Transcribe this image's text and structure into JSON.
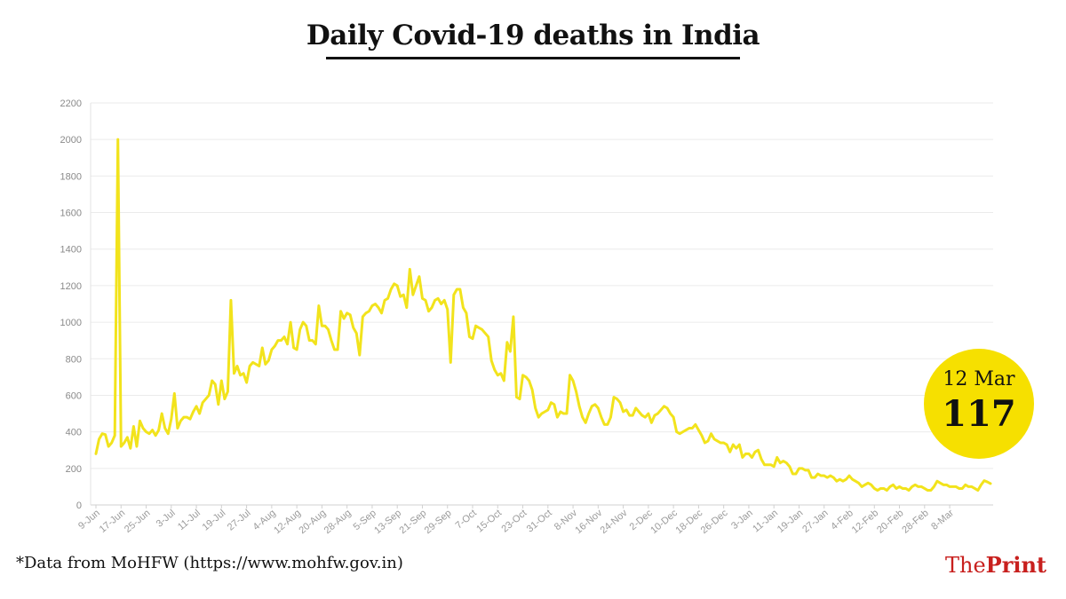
{
  "title": "Daily Covid-19 deaths in India",
  "source_note": "*Data from MoHFW (https://www.mohfw.gov.in)",
  "brand": {
    "the": "The",
    "print": "Print"
  },
  "badge": {
    "date": "12 Mar",
    "value": "117"
  },
  "colors": {
    "line": "#f2e31c",
    "badge": "#f6e000",
    "grid": "#e6e6e6",
    "axis_text": "#9a9a9a",
    "brand": "#c8201e"
  },
  "chart_data": {
    "type": "line",
    "title": "Daily Covid-19 deaths in India",
    "xlabel": "",
    "ylabel": "",
    "ylim": [
      0,
      2200
    ],
    "yticks": [
      0,
      200,
      400,
      600,
      800,
      1000,
      1200,
      1400,
      1600,
      1800,
      2000,
      2200
    ],
    "xtick_labels": [
      "9-Jun",
      "17-Jun",
      "25-Jun",
      "3-Jul",
      "11-Jul",
      "19-Jul",
      "27-Jul",
      "4-Aug",
      "12-Aug",
      "20-Aug",
      "28-Aug",
      "5-Sep",
      "13-Sep",
      "21-Sep",
      "29-Sep",
      "7-Oct",
      "15-Oct",
      "23-Oct",
      "31-Oct",
      "8-Nov",
      "16-Nov",
      "24-Nov",
      "2-Dec",
      "10-Dec",
      "18-Dec",
      "26-Dec",
      "3-Jan",
      "11-Jan",
      "19-Jan",
      "27-Jan",
      "4-Feb",
      "12-Feb",
      "20-Feb",
      "28-Feb",
      "8-Mar"
    ],
    "x_start": "9-Jun",
    "x_end": "12-Mar",
    "grid": true,
    "series": [
      {
        "values": [
          280,
          360,
          390,
          385,
          320,
          340,
          380,
          2000,
          320,
          340,
          370,
          310,
          430,
          320,
          460,
          420,
          400,
          390,
          410,
          380,
          410,
          500,
          420,
          390,
          470,
          610,
          420,
          460,
          480,
          480,
          470,
          510,
          540,
          500,
          560,
          580,
          600,
          680,
          660,
          550,
          680,
          580,
          620,
          1120,
          720,
          760,
          710,
          720,
          670,
          760,
          780,
          770,
          760,
          860,
          770,
          790,
          850,
          870,
          900,
          900,
          920,
          880,
          1000,
          860,
          850,
          960,
          1000,
          980,
          900,
          900,
          880,
          1090,
          980,
          980,
          960,
          900,
          850,
          850,
          1060,
          1020,
          1050,
          1040,
          970,
          940,
          820,
          1030,
          1050,
          1060,
          1090,
          1100,
          1080,
          1050,
          1120,
          1130,
          1180,
          1210,
          1200,
          1140,
          1150,
          1080,
          1290,
          1150,
          1200,
          1250,
          1130,
          1120,
          1060,
          1080,
          1120,
          1130,
          1100,
          1120,
          1070,
          780,
          1150,
          1180,
          1180,
          1080,
          1050,
          920,
          910,
          980,
          970,
          960,
          940,
          920,
          790,
          740,
          710,
          720,
          680,
          890,
          840,
          1030,
          590,
          580,
          710,
          700,
          680,
          630,
          530,
          480,
          500,
          510,
          520,
          560,
          550,
          480,
          510,
          500,
          500,
          710,
          680,
          620,
          540,
          480,
          450,
          500,
          540,
          550,
          530,
          480,
          440,
          440,
          480,
          590,
          580,
          560,
          510,
          520,
          490,
          490,
          530,
          510,
          490,
          480,
          500,
          450,
          490,
          500,
          520,
          540,
          530,
          500,
          480,
          400,
          390,
          400,
          410,
          420,
          420,
          440,
          410,
          380,
          340,
          350,
          390,
          360,
          350,
          340,
          340,
          330,
          290,
          330,
          310,
          330,
          260,
          280,
          280,
          260,
          290,
          300,
          250,
          220,
          220,
          220,
          210,
          260,
          230,
          240,
          230,
          210,
          170,
          170,
          200,
          200,
          190,
          190,
          150,
          150,
          170,
          160,
          160,
          150,
          160,
          150,
          130,
          140,
          130,
          140,
          160,
          140,
          130,
          120,
          100,
          110,
          120,
          110,
          90,
          80,
          90,
          90,
          80,
          100,
          110,
          90,
          100,
          90,
          90,
          80,
          100,
          110,
          100,
          100,
          90,
          80,
          80,
          100,
          130,
          120,
          110,
          110,
          100,
          100,
          100,
          90,
          90,
          110,
          100,
          100,
          90,
          80,
          110,
          133,
          126,
          117
        ]
      }
    ]
  }
}
